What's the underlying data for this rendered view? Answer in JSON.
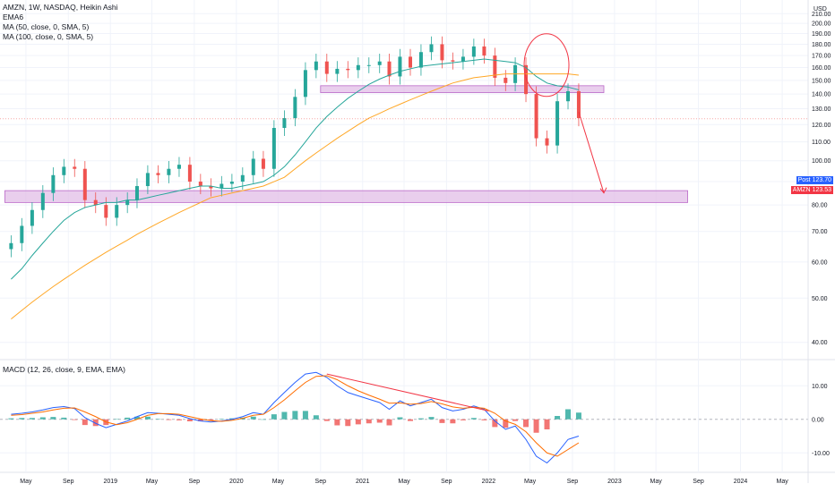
{
  "header": {
    "symbol_line": "AMZN, 1W, NASDAQ, Heikin Ashi",
    "indicators": [
      "EMA6",
      "MA (50, close, 0, SMA, 5)",
      "MA (100, close, 0, SMA, 5)"
    ]
  },
  "macd_legend": "MACD (12, 26, close, 9, EMA, EMA)",
  "price_axis": {
    "currency": "USD",
    "tick_labels": [
      "210.00",
      "200.00",
      "190.00",
      "180.00",
      "170.00",
      "160.00",
      "150.00",
      "140.00",
      "130.00",
      "120.00",
      "110.00",
      "100.00",
      "90.00",
      "80.00",
      "70.00",
      "60.00",
      "50.00",
      "40.00"
    ]
  },
  "macd_axis": {
    "tick_labels": [
      "10.00",
      "0.00",
      "-10.00"
    ]
  },
  "time_axis": {
    "labels": [
      "May",
      "Sep",
      "2019",
      "May",
      "Sep",
      "2020",
      "May",
      "Sep",
      "2021",
      "May",
      "Sep",
      "2022",
      "May",
      "Sep",
      "2023",
      "May",
      "Sep",
      "2024",
      "May"
    ]
  },
  "price_tags": [
    {
      "label": "Post",
      "value": "123.70",
      "color": "#2962ff"
    },
    {
      "label": "AMZN",
      "value": "123.53",
      "color": "#f23645"
    }
  ],
  "colors": {
    "up": "#26a69a",
    "down": "#ef5350",
    "ma50": "#26a69a",
    "ma100": "#ffa726",
    "zone": "#e1bee7",
    "zone_border": "#ba68c8",
    "annotation": "#f23645",
    "macd": "#2962ff",
    "signal": "#ff6d00"
  },
  "chart_data": [
    {
      "type": "candlestick",
      "title": "AMZN, 1W, NASDAQ, Heikin Ashi",
      "ylabel": "USD",
      "y_scale": "log",
      "ylim": [
        37,
        225
      ],
      "x": [
        "2018-03",
        "2018-04",
        "2018-05",
        "2018-06",
        "2018-07",
        "2018-08",
        "2018-09",
        "2018-10",
        "2018-11",
        "2018-12",
        "2019-01",
        "2019-02",
        "2019-03",
        "2019-04",
        "2019-05",
        "2019-06",
        "2019-07",
        "2019-08",
        "2019-09",
        "2019-10",
        "2019-11",
        "2019-12",
        "2020-01",
        "2020-02",
        "2020-03",
        "2020-04",
        "2020-05",
        "2020-06",
        "2020-07",
        "2020-08",
        "2020-09",
        "2020-10",
        "2020-11",
        "2020-12",
        "2021-01",
        "2021-02",
        "2021-03",
        "2021-04",
        "2021-05",
        "2021-06",
        "2021-07",
        "2021-08",
        "2021-09",
        "2021-10",
        "2021-11",
        "2021-12",
        "2022-01",
        "2022-02",
        "2022-03",
        "2022-04",
        "2022-05",
        "2022-06",
        "2022-07",
        "2022-08",
        "2022-09"
      ],
      "close": [
        66,
        72,
        78,
        85,
        93,
        97,
        96,
        82,
        80,
        75,
        80,
        82,
        88,
        94,
        93,
        96,
        98,
        90,
        88,
        87,
        89,
        90,
        93,
        101,
        96,
        118,
        124,
        138,
        158,
        165,
        155,
        159,
        158,
        162,
        162,
        165,
        153,
        169,
        160,
        173,
        180,
        166,
        165,
        169,
        178,
        170,
        152,
        148,
        162,
        140,
        112,
        108,
        135,
        142,
        124
      ],
      "series": [
        {
          "name": "EMA6",
          "values": [
            64,
            70,
            76,
            83,
            90,
            95,
            96,
            86,
            81,
            77,
            79,
            81,
            86,
            92,
            93,
            95,
            97,
            92,
            89,
            88,
            88,
            89,
            92,
            99,
            98,
            113,
            121,
            133,
            152,
            162,
            157,
            158,
            158,
            161,
            162,
            164,
            157,
            166,
            162,
            170,
            177,
            170,
            167,
            169,
            176,
            172,
            158,
            151,
            158,
            145,
            120,
            110,
            128,
            138,
            128
          ]
        },
        {
          "name": "MA (50, close, 0, SMA, 5)",
          "values": [
            55,
            58,
            62,
            66,
            70,
            74,
            77,
            79,
            80,
            81,
            81,
            82,
            82,
            83,
            84,
            85,
            86,
            87,
            88,
            88,
            87,
            87,
            88,
            89,
            90,
            93,
            97,
            103,
            110,
            118,
            125,
            131,
            137,
            142,
            147,
            151,
            154,
            157,
            159,
            161,
            162,
            163,
            164,
            165,
            166,
            167,
            166,
            165,
            164,
            160,
            153,
            148,
            146,
            145,
            143
          ]
        },
        {
          "name": "MA (100, close, 0, SMA, 5)",
          "values": [
            45,
            47,
            49,
            51,
            53,
            55,
            57,
            59,
            61,
            63,
            65,
            67,
            69,
            71,
            73,
            75,
            77,
            79,
            81,
            83,
            84,
            85,
            86,
            87,
            88,
            90,
            92,
            96,
            100,
            104,
            108,
            112,
            116,
            120,
            124,
            127,
            130,
            133,
            136,
            139,
            142,
            145,
            148,
            150,
            152,
            153,
            154,
            155,
            155,
            155,
            155,
            155,
            155,
            155,
            154
          ]
        }
      ],
      "zones": [
        {
          "from_date": "2018-03",
          "to_date": "2023-08",
          "low": 81,
          "high": 86
        },
        {
          "from_date": "2020-09",
          "to_date": "2022-12",
          "low": 141,
          "high": 146
        }
      ],
      "projection": {
        "from": {
          "date": "2022-09",
          "price": 128
        },
        "to": {
          "date": "2022-12",
          "price": 85
        }
      },
      "ellipse": {
        "date": "2022-04",
        "price": 162
      },
      "divergence_line": {
        "from": {
          "date": "2020-09",
          "value": 13.5
        },
        "to": {
          "date": "2022-01",
          "value": 2.5
        }
      },
      "last_price": 123.53
    },
    {
      "type": "bar",
      "title": "MACD (12, 26, close, 9, EMA, EMA)",
      "ylim": [
        -15,
        17
      ],
      "x": [
        "2018-03",
        "2018-04",
        "2018-05",
        "2018-06",
        "2018-07",
        "2018-08",
        "2018-09",
        "2018-10",
        "2018-11",
        "2018-12",
        "2019-01",
        "2019-02",
        "2019-03",
        "2019-04",
        "2019-05",
        "2019-06",
        "2019-07",
        "2019-08",
        "2019-09",
        "2019-10",
        "2019-11",
        "2019-12",
        "2020-01",
        "2020-02",
        "2020-03",
        "2020-04",
        "2020-05",
        "2020-06",
        "2020-07",
        "2020-08",
        "2020-09",
        "2020-10",
        "2020-11",
        "2020-12",
        "2021-01",
        "2021-02",
        "2021-03",
        "2021-04",
        "2021-05",
        "2021-06",
        "2021-07",
        "2021-08",
        "2021-09",
        "2021-10",
        "2021-11",
        "2021-12",
        "2022-01",
        "2022-02",
        "2022-03",
        "2022-04",
        "2022-05",
        "2022-06",
        "2022-07",
        "2022-08",
        "2022-09"
      ],
      "series": [
        {
          "name": "MACD",
          "values": [
            1.5,
            1.8,
            2.2,
            2.8,
            3.5,
            3.8,
            3.2,
            0.5,
            -1.2,
            -2.5,
            -1.5,
            -0.5,
            0.8,
            2,
            1.8,
            1.5,
            1.2,
            0.2,
            -0.5,
            -0.8,
            -0.5,
            0,
            0.8,
            2,
            1.5,
            5,
            8,
            11,
            13.5,
            14,
            12.5,
            10,
            8,
            7,
            6,
            5,
            3,
            5.5,
            4,
            5,
            6,
            3.5,
            2.5,
            3,
            4,
            3,
            -0.5,
            -3,
            -2,
            -6,
            -11,
            -13,
            -10,
            -6,
            -5
          ]
        },
        {
          "name": "Signal",
          "values": [
            1.2,
            1.4,
            1.8,
            2.2,
            2.8,
            3.3,
            3.4,
            2.2,
            0.8,
            -0.8,
            -1.6,
            -1,
            0,
            1.2,
            1.7,
            1.7,
            1.5,
            0.8,
            0.1,
            -0.4,
            -0.6,
            -0.3,
            0.3,
            1.2,
            1.5,
            3.5,
            5.8,
            8.5,
            11,
            12.8,
            13,
            11.8,
            10,
            8.5,
            7.2,
            6,
            4.8,
            4.9,
            4.5,
            4.7,
            5.3,
            4.6,
            3.7,
            3.3,
            3.6,
            3.3,
            1.8,
            -0.5,
            -1.5,
            -3.7,
            -7,
            -10,
            -11,
            -9,
            -7
          ]
        },
        {
          "name": "Histogram",
          "values": [
            0.3,
            0.4,
            0.4,
            0.6,
            0.7,
            0.5,
            -0.2,
            -1.7,
            -2,
            -1.7,
            0.1,
            0.5,
            0.8,
            0.8,
            0.1,
            -0.2,
            -0.3,
            -0.6,
            -0.6,
            -0.4,
            0.1,
            0.3,
            0.5,
            0.8,
            0,
            1.5,
            2.2,
            2.5,
            2.5,
            1.2,
            -0.5,
            -1.8,
            -2,
            -1.5,
            -1.2,
            -1,
            -1.8,
            0.6,
            -0.5,
            0.3,
            0.7,
            -1.1,
            -1.2,
            -0.3,
            0.4,
            -0.3,
            -2.3,
            -2.5,
            -0.5,
            -2.3,
            -4,
            -3,
            1,
            3,
            2
          ]
        }
      ]
    }
  ]
}
